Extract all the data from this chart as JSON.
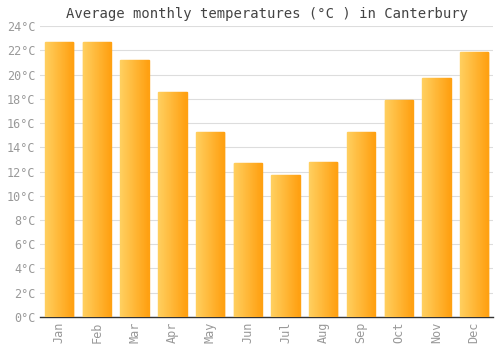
{
  "title": "Average monthly temperatures (°C ) in Canterbury",
  "months": [
    "Jan",
    "Feb",
    "Mar",
    "Apr",
    "May",
    "Jun",
    "Jul",
    "Aug",
    "Sep",
    "Oct",
    "Nov",
    "Dec"
  ],
  "values": [
    22.7,
    22.7,
    21.2,
    18.6,
    15.3,
    12.7,
    11.7,
    12.8,
    15.3,
    17.9,
    19.7,
    21.9
  ],
  "bar_color_left": "#FFD060",
  "bar_color_right": "#FFA010",
  "background_color": "#FFFFFF",
  "grid_color": "#DDDDDD",
  "ylim": [
    0,
    24
  ],
  "ytick_step": 2,
  "title_fontsize": 10,
  "tick_fontsize": 8.5,
  "font_family": "monospace",
  "bar_width": 0.75
}
